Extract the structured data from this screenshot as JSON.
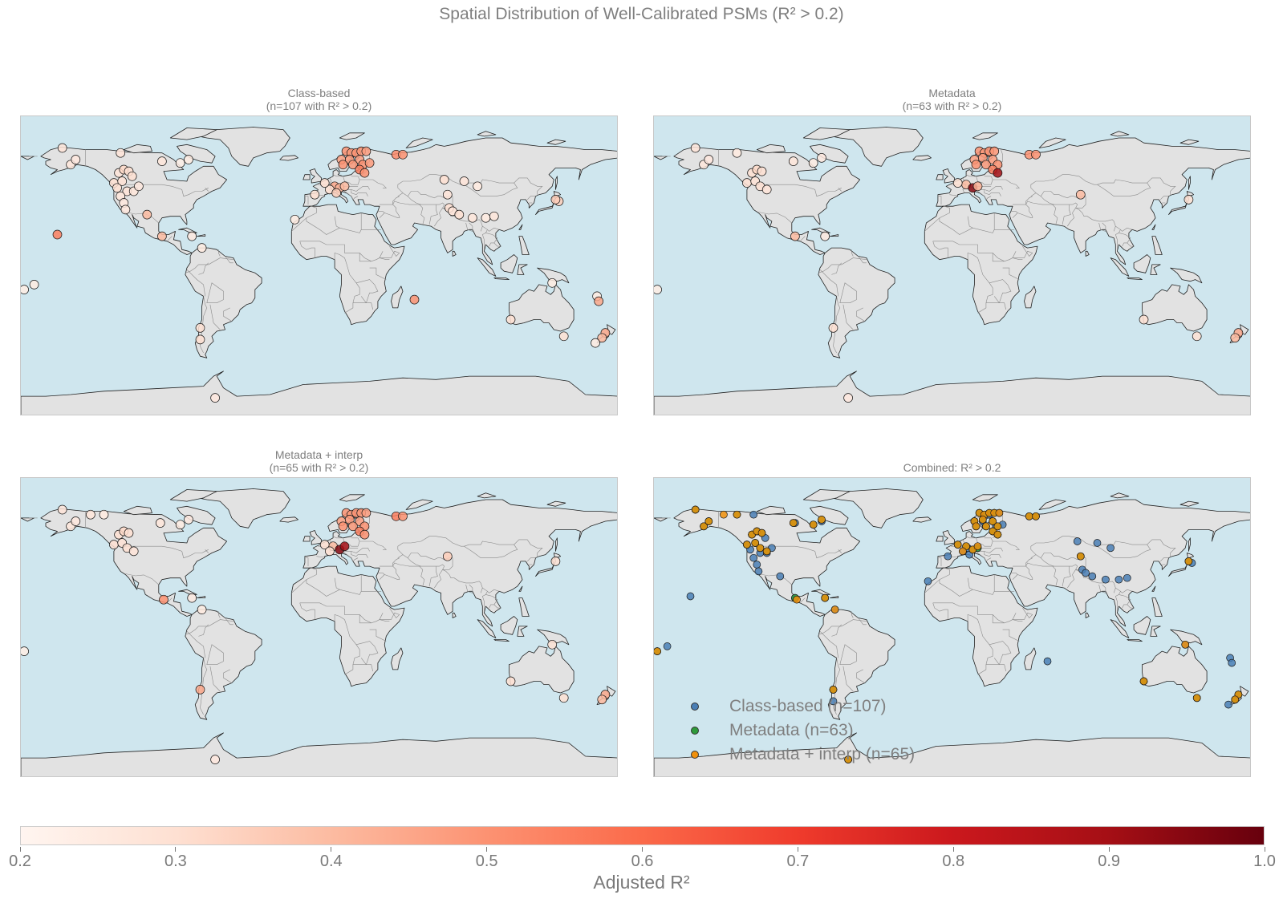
{
  "figure": {
    "title": "Spatial Distribution of Well-Calibrated PSMs (R² > 0.2)"
  },
  "colors": {
    "ocean": "#cfe6ee",
    "land": "#e2e2e2",
    "coast": "#222222",
    "borders": "#8a8a8a",
    "class_based": "#4a7fb5",
    "metadata": "#2e9a3a",
    "metadata_interp": "#f0900c",
    "cmap_start": "#fff5f0",
    "cmap_end": "#67000d"
  },
  "panels": [
    {
      "id": "class-based",
      "title_line1": "Class-based",
      "title_line2": "(n=107 with R² > 0.2)",
      "points": [
        [
          -155,
          71,
          0.28
        ],
        [
          -150,
          61,
          0.27
        ],
        [
          -147,
          64,
          0.26
        ],
        [
          -120,
          68,
          0.28
        ],
        [
          -95,
          63,
          0.27
        ],
        [
          -84,
          62,
          0.24
        ],
        [
          -79,
          64,
          0.25
        ],
        [
          -121,
          56,
          0.28
        ],
        [
          -118,
          58,
          0.32
        ],
        [
          -115,
          57,
          0.3
        ],
        [
          -113,
          54,
          0.3
        ],
        [
          -124,
          50,
          0.3
        ],
        [
          -119,
          51,
          0.29
        ],
        [
          -122,
          47,
          0.3
        ],
        [
          -116,
          45,
          0.28
        ],
        [
          -112,
          45,
          0.27
        ],
        [
          -109,
          48,
          0.26
        ],
        [
          -120,
          42,
          0.27
        ],
        [
          -118,
          38,
          0.26
        ],
        [
          -117,
          34,
          0.26
        ],
        [
          -104,
          31,
          0.4
        ],
        [
          -95,
          18,
          0.4
        ],
        [
          -77,
          18,
          0.26
        ],
        [
          -71,
          11,
          0.25
        ],
        [
          -158,
          19,
          0.55
        ],
        [
          -172,
          -11,
          0.25
        ],
        [
          -178,
          -14,
          0.24
        ],
        [
          -72,
          -37,
          0.3
        ],
        [
          -72,
          -44,
          0.3
        ],
        [
          -63,
          -79,
          0.26
        ],
        [
          16,
          69,
          0.5
        ],
        [
          19,
          68,
          0.48
        ],
        [
          22,
          68,
          0.5
        ],
        [
          25,
          69,
          0.49
        ],
        [
          28,
          69,
          0.47
        ],
        [
          13,
          64,
          0.46
        ],
        [
          18,
          64,
          0.48
        ],
        [
          24,
          64,
          0.47
        ],
        [
          14,
          61,
          0.5
        ],
        [
          20,
          61,
          0.49
        ],
        [
          26,
          61,
          0.5
        ],
        [
          30,
          62,
          0.48
        ],
        [
          24,
          58,
          0.55
        ],
        [
          27,
          56,
          0.5
        ],
        [
          46,
          67,
          0.52
        ],
        [
          50,
          67,
          0.5
        ],
        [
          9,
          48,
          0.45
        ],
        [
          12,
          47,
          0.42
        ],
        [
          15,
          48,
          0.4
        ],
        [
          6,
          46,
          0.3
        ],
        [
          -3,
          43,
          0.3
        ],
        [
          10,
          44,
          0.35
        ],
        [
          -15,
          28,
          0.25
        ],
        [
          3,
          50,
          0.3
        ],
        [
          75,
          52,
          0.3
        ],
        [
          87,
          51,
          0.28
        ],
        [
          77,
          43,
          0.28
        ],
        [
          95,
          48,
          0.25
        ],
        [
          78,
          35,
          0.3
        ],
        [
          80,
          33,
          0.28
        ],
        [
          84,
          31,
          0.3
        ],
        [
          92,
          29,
          0.27
        ],
        [
          100,
          29,
          0.25
        ],
        [
          105,
          30,
          0.27
        ],
        [
          57,
          -20,
          0.5
        ],
        [
          140,
          -10,
          0.25
        ],
        [
          115,
          -32,
          0.3
        ],
        [
          147,
          -42,
          0.3
        ],
        [
          167,
          -18,
          0.25
        ],
        [
          168,
          -21,
          0.45
        ],
        [
          172,
          -40,
          0.45
        ],
        [
          170,
          -43,
          0.4
        ],
        [
          166,
          -46,
          0.25
        ],
        [
          144,
          39,
          0.35
        ],
        [
          142,
          40,
          0.35
        ]
      ]
    },
    {
      "id": "metadata",
      "title_line1": "Metadata",
      "title_line2": "(n=63 with R² > 0.2)",
      "points": [
        [
          -155,
          71,
          0.28
        ],
        [
          -150,
          61,
          0.27
        ],
        [
          -147,
          64,
          0.26
        ],
        [
          -130,
          68,
          0.25
        ],
        [
          -96,
          63,
          0.27
        ],
        [
          -84,
          62,
          0.25
        ],
        [
          -79,
          65,
          0.26
        ],
        [
          -121,
          56,
          0.3
        ],
        [
          -118,
          58,
          0.32
        ],
        [
          -115,
          57,
          0.3
        ],
        [
          -124,
          50,
          0.3
        ],
        [
          -119,
          51,
          0.29
        ],
        [
          -116,
          48,
          0.3
        ],
        [
          -112,
          46,
          0.28
        ],
        [
          -95,
          18,
          0.4
        ],
        [
          -77,
          18,
          0.26
        ],
        [
          -178,
          -14,
          0.24
        ],
        [
          -72,
          -37,
          0.3
        ],
        [
          -63,
          -79,
          0.26
        ],
        [
          16,
          69,
          0.5
        ],
        [
          19,
          68,
          0.48
        ],
        [
          22,
          69,
          0.5
        ],
        [
          25,
          69,
          0.49
        ],
        [
          13,
          64,
          0.46
        ],
        [
          18,
          65,
          0.48
        ],
        [
          24,
          64,
          0.47
        ],
        [
          14,
          61,
          0.5
        ],
        [
          20,
          61,
          0.49
        ],
        [
          27,
          61,
          0.5
        ],
        [
          24,
          58,
          0.55
        ],
        [
          27,
          56,
          0.9
        ],
        [
          46,
          67,
          0.5
        ],
        [
          50,
          67,
          0.5
        ],
        [
          8,
          49,
          0.4
        ],
        [
          12,
          47,
          0.95
        ],
        [
          15,
          48,
          0.42
        ],
        [
          3,
          50,
          0.3
        ],
        [
          77,
          43,
          0.4
        ],
        [
          142,
          40,
          0.3
        ],
        [
          115,
          -32,
          0.3
        ],
        [
          147,
          -42,
          0.3
        ],
        [
          172,
          -40,
          0.45
        ],
        [
          170,
          -43,
          0.4
        ]
      ]
    },
    {
      "id": "metadata-interp",
      "title_line1": "Metadata + interp",
      "title_line2": "(n=65 with R² > 0.2)",
      "points": [
        [
          -155,
          71,
          0.28
        ],
        [
          -150,
          61,
          0.27
        ],
        [
          -147,
          64,
          0.26
        ],
        [
          -138,
          68,
          0.27
        ],
        [
          -130,
          68,
          0.25
        ],
        [
          -96,
          63,
          0.27
        ],
        [
          -84,
          62,
          0.25
        ],
        [
          -79,
          65,
          0.26
        ],
        [
          -121,
          56,
          0.3
        ],
        [
          -118,
          58,
          0.32
        ],
        [
          -115,
          57,
          0.3
        ],
        [
          -124,
          50,
          0.3
        ],
        [
          -119,
          51,
          0.29
        ],
        [
          -116,
          48,
          0.3
        ],
        [
          -112,
          46,
          0.28
        ],
        [
          -94,
          17,
          0.5
        ],
        [
          -77,
          18,
          0.26
        ],
        [
          -71,
          11,
          0.25
        ],
        [
          -178,
          -14,
          0.24
        ],
        [
          -72,
          -37,
          0.45
        ],
        [
          -63,
          -79,
          0.26
        ],
        [
          16,
          69,
          0.5
        ],
        [
          19,
          68,
          0.48
        ],
        [
          22,
          69,
          0.5
        ],
        [
          25,
          69,
          0.49
        ],
        [
          28,
          69,
          0.47
        ],
        [
          13,
          64,
          0.46
        ],
        [
          18,
          65,
          0.48
        ],
        [
          24,
          64,
          0.47
        ],
        [
          14,
          61,
          0.5
        ],
        [
          20,
          61,
          0.49
        ],
        [
          27,
          61,
          0.5
        ],
        [
          24,
          58,
          0.55
        ],
        [
          27,
          56,
          0.5
        ],
        [
          46,
          67,
          0.55
        ],
        [
          50,
          67,
          0.5
        ],
        [
          8,
          49,
          0.4
        ],
        [
          12,
          47,
          0.95
        ],
        [
          15,
          49,
          0.9
        ],
        [
          3,
          50,
          0.3
        ],
        [
          6,
          46,
          0.3
        ],
        [
          77,
          43,
          0.35
        ],
        [
          142,
          40,
          0.3
        ],
        [
          140,
          -10,
          0.3
        ],
        [
          115,
          -32,
          0.3
        ],
        [
          147,
          -42,
          0.3
        ],
        [
          172,
          -40,
          0.45
        ],
        [
          170,
          -43,
          0.4
        ]
      ]
    },
    {
      "id": "combined",
      "title_line1": "Combined: R² > 0.2",
      "title_line2": "",
      "combined": true,
      "legend": [
        {
          "label": "Class-based (n=107)",
          "key": "class_based"
        },
        {
          "label": "Metadata (n=63)",
          "key": "metadata"
        },
        {
          "label": "Metadata + interp (n=65)",
          "key": "metadata_interp"
        }
      ]
    }
  ],
  "colorbar": {
    "label": "Adjusted R²",
    "ticks": [
      "0.2",
      "0.3",
      "0.4",
      "0.5",
      "0.6",
      "0.7",
      "0.8",
      "0.9",
      "1.0"
    ],
    "min": 0.2,
    "max": 1.0
  }
}
